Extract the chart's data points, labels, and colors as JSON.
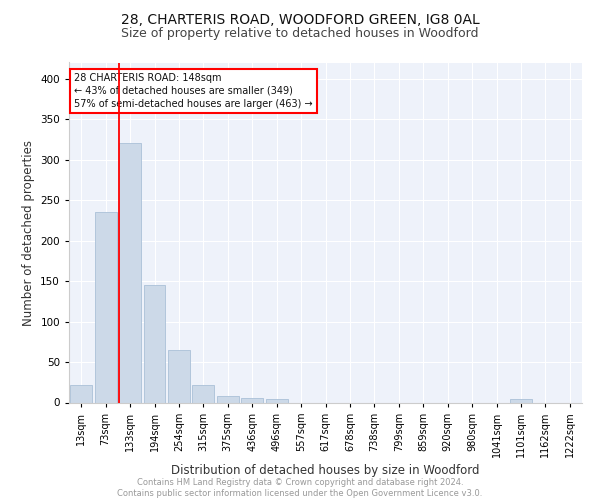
{
  "title1": "28, CHARTERIS ROAD, WOODFORD GREEN, IG8 0AL",
  "title2": "Size of property relative to detached houses in Woodford",
  "xlabel": "Distribution of detached houses by size in Woodford",
  "ylabel": "Number of detached properties",
  "bar_color": "#ccd9e8",
  "bar_edge_color": "#aac0d8",
  "background_color": "#eef2fa",
  "grid_color": "#ffffff",
  "categories": [
    "13sqm",
    "73sqm",
    "133sqm",
    "194sqm",
    "254sqm",
    "315sqm",
    "375sqm",
    "436sqm",
    "496sqm",
    "557sqm",
    "617sqm",
    "678sqm",
    "738sqm",
    "799sqm",
    "859sqm",
    "920sqm",
    "980sqm",
    "1041sqm",
    "1101sqm",
    "1162sqm",
    "1222sqm"
  ],
  "values": [
    22,
    235,
    320,
    145,
    65,
    22,
    8,
    6,
    4,
    0,
    0,
    0,
    0,
    0,
    0,
    0,
    0,
    0,
    4,
    0,
    0
  ],
  "annotation_text": "28 CHARTERIS ROAD: 148sqm\n← 43% of detached houses are smaller (349)\n57% of semi-detached houses are larger (463) →",
  "ylim": [
    0,
    420
  ],
  "yticks": [
    0,
    50,
    100,
    150,
    200,
    250,
    300,
    350,
    400
  ],
  "footer_text": "Contains HM Land Registry data © Crown copyright and database right 2024.\nContains public sector information licensed under the Open Government Licence v3.0.",
  "title1_fontsize": 10,
  "title2_fontsize": 9,
  "xlabel_fontsize": 8.5,
  "ylabel_fontsize": 8.5
}
